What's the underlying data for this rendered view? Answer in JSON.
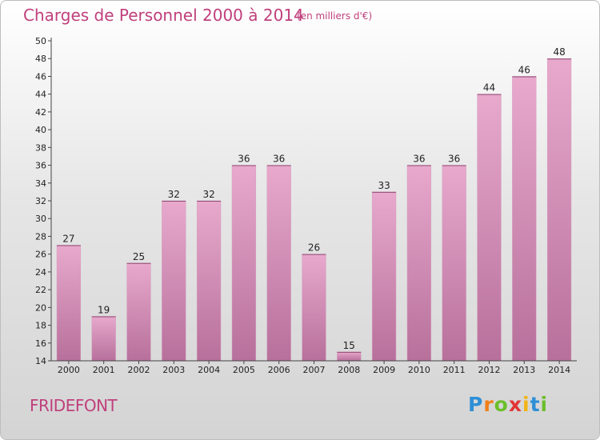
{
  "chart_data": {
    "type": "bar",
    "title": "Charges de Personnel 2000 à 2014",
    "subtitle": "(en milliers d'€)",
    "categories": [
      "2000",
      "2001",
      "2002",
      "2003",
      "2004",
      "2005",
      "2006",
      "2007",
      "2008",
      "2009",
      "2010",
      "2011",
      "2012",
      "2013",
      "2014"
    ],
    "values": [
      27,
      19,
      25,
      32,
      32,
      36,
      36,
      26,
      15,
      33,
      36,
      36,
      44,
      46,
      48
    ],
    "ylim": [
      14,
      50
    ],
    "ytick_step": 2,
    "xlabel": "",
    "ylabel": "",
    "grid": false,
    "bar_color_top": "#e8a9cd",
    "bar_color_bottom": "#b7709b"
  },
  "footer": {
    "commune": "FRIDEFONT",
    "logo_letters": [
      {
        "char": "P",
        "color": "#2e8fd6"
      },
      {
        "char": "r",
        "color": "#f07f1a"
      },
      {
        "char": "o",
        "color": "#6cbf2d"
      },
      {
        "char": "x",
        "color": "#e23636"
      },
      {
        "char": "i",
        "color": "#f2b416"
      },
      {
        "char": "t",
        "color": "#2e8fd6"
      },
      {
        "char": "i",
        "color": "#6cbf2d"
      }
    ]
  },
  "colors": {
    "accent": "#c0407c"
  }
}
